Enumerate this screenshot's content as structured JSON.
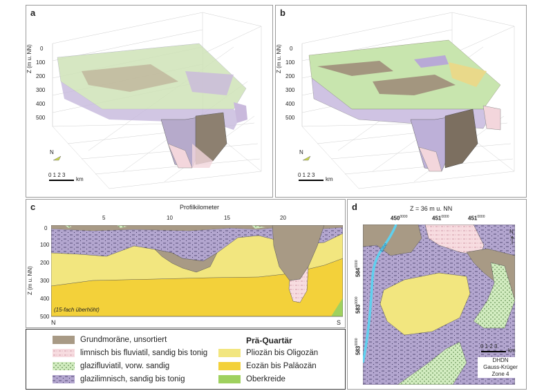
{
  "panels": {
    "a": {
      "label": "a",
      "zaxis": "Z (m u. NN)",
      "ticks": [
        "0",
        "100",
        "200",
        "300",
        "400",
        "500"
      ],
      "north": "N",
      "scale_ticks": "0  1  2  3",
      "scale_unit": "km"
    },
    "b": {
      "label": "b",
      "zaxis": "Z (m u. NN)",
      "ticks": [
        "0",
        "100",
        "200",
        "300",
        "400",
        "500"
      ],
      "north": "N",
      "scale_ticks": "0  1  2  3",
      "scale_unit": "km"
    },
    "c": {
      "label": "c",
      "title": "Profilkilometer",
      "xticks": [
        "5",
        "10",
        "15",
        "20"
      ],
      "zaxis": "Z (m u. NN)",
      "yticks": [
        "0",
        "100",
        "200",
        "300",
        "400",
        "500"
      ],
      "left_end": "N",
      "right_end": "S",
      "note": "(15-fach überhöht)"
    },
    "d": {
      "label": "d",
      "title": "Z = 36 m u. NN",
      "x_labels": [
        "450",
        "451",
        "451"
      ],
      "x_sup": "0000",
      "y_labels": [
        "584",
        "583",
        "583"
      ],
      "y_sup": "0000",
      "river": "Elbe",
      "north": "N",
      "scale_ticks": "0  1  2  3",
      "scale_unit": "km",
      "crs_lines": [
        "DHDN",
        "Gauss-Krüger",
        "Zone 4"
      ]
    }
  },
  "legend": {
    "heading": "Prä-Quartär",
    "items": [
      {
        "label": "Grundmoräne, unsortiert",
        "color": "#a89a85"
      },
      {
        "label": "limnisch bis fluviatil, sandig bis tonig",
        "color": "#f7dce0"
      },
      {
        "label": "glazifluviatil, vorw. sandig",
        "color": "#d2ecc0"
      },
      {
        "label": "glazilimnisch, sandig bis tonig",
        "color": "#b3a6cf"
      },
      {
        "label": "Pliozän bis Oligozän",
        "color": "#f2e67f"
      },
      {
        "label": "Eozän bis Paläozän",
        "color": "#f3d13a"
      },
      {
        "label": "Oberkreide",
        "color": "#9fd15e"
      }
    ]
  }
}
